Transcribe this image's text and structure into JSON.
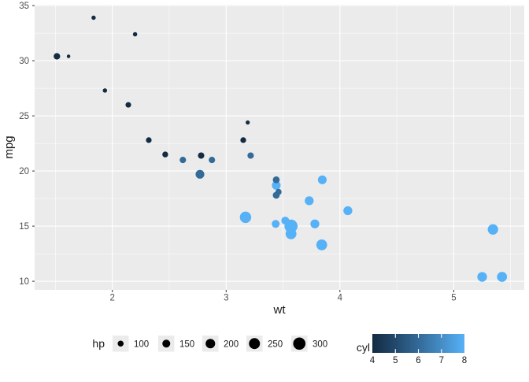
{
  "chart_data": {
    "type": "scatter",
    "title": "",
    "xlabel": "wt",
    "ylabel": "mpg",
    "xlim": [
      1.317,
      5.62
    ],
    "ylim": [
      9.225,
      35.075
    ],
    "x_ticks": [
      2,
      3,
      4,
      5
    ],
    "y_ticks": [
      10,
      15,
      20,
      25,
      30,
      35
    ],
    "x_minor": [
      1.5,
      2.5,
      3.5,
      4.5,
      5.5
    ],
    "y_minor": [
      12.5,
      17.5,
      22.5,
      27.5,
      32.5
    ],
    "grid": "on",
    "legend_position": "bottom",
    "points": [
      {
        "wt": 2.62,
        "mpg": 21.0,
        "hp": 110,
        "cyl": 6
      },
      {
        "wt": 2.875,
        "mpg": 21.0,
        "hp": 110,
        "cyl": 6
      },
      {
        "wt": 2.32,
        "mpg": 22.8,
        "hp": 93,
        "cyl": 4
      },
      {
        "wt": 3.215,
        "mpg": 21.4,
        "hp": 110,
        "cyl": 6
      },
      {
        "wt": 3.44,
        "mpg": 18.7,
        "hp": 175,
        "cyl": 8
      },
      {
        "wt": 3.46,
        "mpg": 18.1,
        "hp": 105,
        "cyl": 6
      },
      {
        "wt": 3.57,
        "mpg": 14.3,
        "hp": 245,
        "cyl": 8
      },
      {
        "wt": 3.19,
        "mpg": 24.4,
        "hp": 62,
        "cyl": 4
      },
      {
        "wt": 3.15,
        "mpg": 22.8,
        "hp": 95,
        "cyl": 4
      },
      {
        "wt": 3.44,
        "mpg": 19.2,
        "hp": 123,
        "cyl": 6
      },
      {
        "wt": 3.44,
        "mpg": 17.8,
        "hp": 123,
        "cyl": 6
      },
      {
        "wt": 4.07,
        "mpg": 16.4,
        "hp": 180,
        "cyl": 8
      },
      {
        "wt": 3.73,
        "mpg": 17.3,
        "hp": 180,
        "cyl": 8
      },
      {
        "wt": 3.78,
        "mpg": 15.2,
        "hp": 180,
        "cyl": 8
      },
      {
        "wt": 5.25,
        "mpg": 10.4,
        "hp": 205,
        "cyl": 8
      },
      {
        "wt": 5.424,
        "mpg": 10.4,
        "hp": 215,
        "cyl": 8
      },
      {
        "wt": 5.345,
        "mpg": 14.7,
        "hp": 230,
        "cyl": 8
      },
      {
        "wt": 2.2,
        "mpg": 32.4,
        "hp": 66,
        "cyl": 4
      },
      {
        "wt": 1.615,
        "mpg": 30.4,
        "hp": 52,
        "cyl": 4
      },
      {
        "wt": 1.835,
        "mpg": 33.9,
        "hp": 65,
        "cyl": 4
      },
      {
        "wt": 2.465,
        "mpg": 21.5,
        "hp": 97,
        "cyl": 4
      },
      {
        "wt": 3.52,
        "mpg": 15.5,
        "hp": 150,
        "cyl": 8
      },
      {
        "wt": 3.435,
        "mpg": 15.2,
        "hp": 150,
        "cyl": 8
      },
      {
        "wt": 3.84,
        "mpg": 13.3,
        "hp": 245,
        "cyl": 8
      },
      {
        "wt": 3.845,
        "mpg": 19.2,
        "hp": 175,
        "cyl": 8
      },
      {
        "wt": 1.935,
        "mpg": 27.3,
        "hp": 66,
        "cyl": 4
      },
      {
        "wt": 2.14,
        "mpg": 26.0,
        "hp": 91,
        "cyl": 4
      },
      {
        "wt": 1.513,
        "mpg": 30.4,
        "hp": 113,
        "cyl": 4
      },
      {
        "wt": 3.17,
        "mpg": 15.8,
        "hp": 264,
        "cyl": 8
      },
      {
        "wt": 2.77,
        "mpg": 19.7,
        "hp": 175,
        "cyl": 6
      },
      {
        "wt": 3.57,
        "mpg": 15.0,
        "hp": 335,
        "cyl": 8
      },
      {
        "wt": 2.78,
        "mpg": 21.4,
        "hp": 109,
        "cyl": 4
      }
    ],
    "legends": {
      "size": {
        "title": "hp",
        "breaks": [
          100,
          150,
          200,
          250,
          300
        ],
        "dot_color": "#000000"
      },
      "color": {
        "title": "cyl",
        "ticks": [
          4,
          5,
          6,
          7,
          8
        ],
        "gradient": [
          "#132B43",
          "#22496C",
          "#336A98",
          "#458DC6",
          "#56B1F7"
        ]
      }
    },
    "style": {
      "panel_bg": "#EBEBEB",
      "grid": "#FFFFFF",
      "tick_color": "#333333",
      "axis_text": "#4D4D4D",
      "text": "#1A1A1A",
      "legend_key_bg": "#EBEBEB",
      "page_bg": "#FFFFFF"
    }
  }
}
